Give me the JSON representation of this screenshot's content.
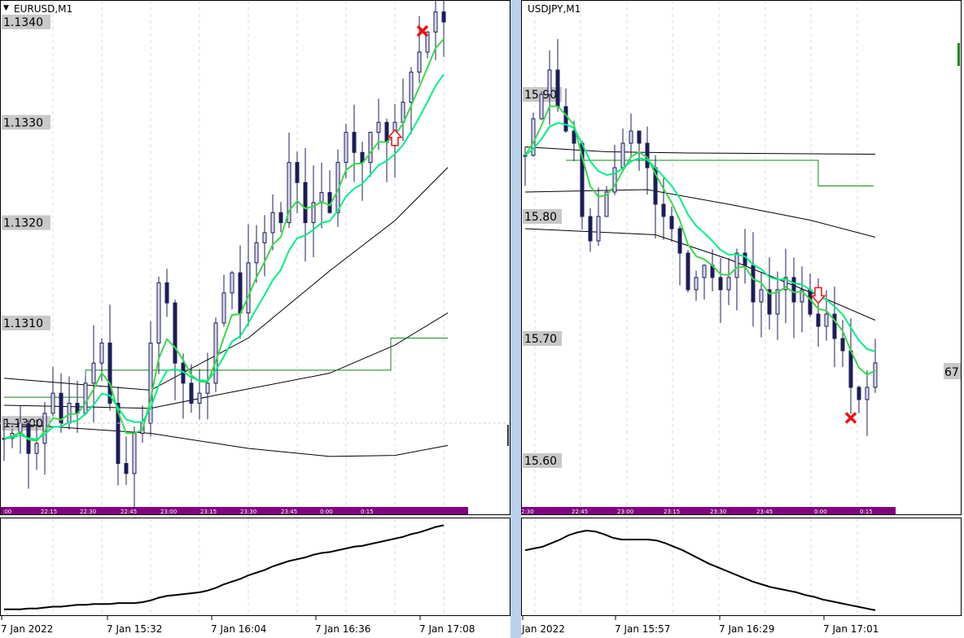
{
  "windows": [
    {
      "symbol": "EURUSD,M1",
      "price_labels": [
        "1.1340",
        "1.1330",
        "1.1320",
        "1.1310",
        "1.1300"
      ],
      "price_levels": [
        1.134,
        1.133,
        1.132,
        1.131,
        1.13
      ],
      "time_bar_labels": [
        ":00",
        "22:15",
        "22:30",
        "22:45",
        "23:00",
        "23:15",
        "23:30",
        "23:45",
        "0:00",
        "0:15"
      ],
      "time_axis_labels": [
        "7 Jan 2022",
        "7 Jan 15:32",
        "7 Jan 16:04",
        "7 Jan 16:36",
        "7 Jan 17:08"
      ],
      "closes": [
        1.12985,
        1.1299,
        1.13,
        1.1297,
        1.1298,
        1.1301,
        1.1303,
        1.13,
        1.1302,
        1.1301,
        1.1304,
        1.1306,
        1.1308,
        1.1302,
        1.1296,
        1.1295,
        1.1299,
        1.13,
        1.1308,
        1.1314,
        1.1312,
        1.1306,
        1.1304,
        1.1302,
        1.1303,
        1.1304,
        1.131,
        1.1313,
        1.1315,
        1.1311,
        1.1316,
        1.1318,
        1.1319,
        1.1321,
        1.132,
        1.1326,
        1.1324,
        1.132,
        1.1322,
        1.1323,
        1.1321,
        1.1326,
        1.1329,
        1.1327,
        1.1326,
        1.1329,
        1.133,
        1.1328,
        1.133,
        1.1332,
        1.1335,
        1.1337,
        1.1339,
        1.1341,
        1.134
      ],
      "black_lines": [
        [
          [
            0,
            1.13045
          ],
          [
            18,
            1.13033
          ],
          [
            30,
            1.13085
          ],
          [
            40,
            1.13152
          ],
          [
            48,
            1.13202
          ],
          [
            54.5,
            1.13255
          ]
        ],
        [
          [
            0,
            1.13018
          ],
          [
            18,
            1.13015
          ],
          [
            26,
            1.13028
          ],
          [
            40,
            1.1305
          ],
          [
            48,
            1.13078
          ],
          [
            54.5,
            1.1311
          ]
        ],
        [
          [
            0,
            1.13
          ],
          [
            18,
            1.1299
          ],
          [
            30,
            1.12975
          ],
          [
            40,
            1.12967
          ],
          [
            48,
            1.12968
          ],
          [
            54.5,
            1.12978
          ]
        ]
      ],
      "step_line": [
        [
          0,
          1.13026
        ],
        [
          10,
          1.13026
        ],
        [
          10,
          1.13053
        ],
        [
          47.5,
          1.13053
        ],
        [
          47.5,
          1.13085
        ],
        [
          54.5,
          1.13085
        ]
      ],
      "arrow": {
        "type": "up",
        "index": 48,
        "price": 1.13285
      },
      "cross": {
        "index": 51.4,
        "price": 1.13391
      },
      "oscillator": [
        2,
        2,
        2,
        3,
        3,
        4,
        5,
        5,
        6,
        7,
        7,
        8,
        8,
        8,
        9,
        9,
        9,
        10,
        12,
        15,
        17,
        18,
        19,
        20,
        21,
        23,
        26,
        30,
        33,
        36,
        40,
        43,
        46,
        50,
        53,
        56,
        58,
        60,
        63,
        65,
        66,
        68,
        70,
        72,
        73,
        75,
        77,
        79,
        81,
        83,
        86,
        88,
        91,
        94,
        96
      ]
    },
    {
      "symbol": "USDJPY,M1",
      "price_labels": [
        "15.90",
        "15.80",
        "15.70",
        "15.60"
      ],
      "price_levels": [
        115.9,
        115.8,
        115.7,
        115.6
      ],
      "current_price_label": "67",
      "time_bar_labels": [
        "2:30",
        "22:45",
        "23:00",
        "23:15",
        "23:30",
        "23:45",
        "0:00",
        "0:15"
      ],
      "time_axis_labels": [
        "Jan 2022",
        "7 Jan 15:57",
        "7 Jan 16:29",
        "7 Jan 17:01"
      ],
      "closes": [
        115.85,
        115.88,
        115.9,
        115.92,
        115.89,
        115.87,
        115.86,
        115.8,
        115.78,
        115.8,
        115.82,
        115.84,
        115.86,
        115.87,
        115.86,
        115.84,
        115.81,
        115.8,
        115.79,
        115.77,
        115.74,
        115.75,
        115.76,
        115.75,
        115.74,
        115.75,
        115.77,
        115.76,
        115.73,
        115.74,
        115.72,
        115.74,
        115.75,
        115.73,
        115.74,
        115.72,
        115.71,
        115.72,
        115.7,
        115.69,
        115.66,
        115.65,
        115.66,
        115.68
      ],
      "black_lines": [
        [
          [
            0,
            115.857
          ],
          [
            10,
            115.853
          ],
          [
            20,
            115.852
          ],
          [
            43,
            115.851
          ]
        ],
        [
          [
            0,
            115.82
          ],
          [
            15,
            115.822
          ],
          [
            25,
            115.81
          ],
          [
            35,
            115.797
          ],
          [
            43,
            115.783
          ]
        ],
        [
          [
            0,
            115.79
          ],
          [
            16,
            115.785
          ],
          [
            25,
            115.765
          ],
          [
            35,
            115.738
          ],
          [
            43,
            115.715
          ]
        ]
      ],
      "step_line": [
        [
          5,
          115.846
        ],
        [
          36,
          115.846
        ],
        [
          36,
          115.825
        ],
        [
          42.8,
          115.825
        ]
      ],
      "arrow": {
        "type": "down",
        "index": 36,
        "price": 115.735
      },
      "cross": {
        "index": 40,
        "price": 115.635
      },
      "oscillator": [
        68,
        70,
        72,
        76,
        80,
        85,
        88,
        90,
        89,
        86,
        82,
        80,
        80,
        80,
        80,
        79,
        76,
        72,
        68,
        63,
        58,
        53,
        49,
        45,
        41,
        37,
        33,
        30,
        27,
        25,
        23,
        21,
        18,
        16,
        13,
        11,
        9,
        7,
        5,
        3,
        1
      ]
    }
  ],
  "colors": {
    "time_bar": "#800080",
    "price_box": "#c8c8c8",
    "candle": "#1c1c5a",
    "ma_fast": "#3ad84a",
    "ma_slow": "#00ee88",
    "step": "#118811",
    "signal": "#ee1111",
    "splitter": "#b9d1ea",
    "grid": "#d8d8ee"
  },
  "icons": {
    "menu": "triangle-down-icon",
    "arrow_up": "up-arrow-icon",
    "arrow_down": "down-arrow-icon",
    "cross": "cross-icon"
  }
}
